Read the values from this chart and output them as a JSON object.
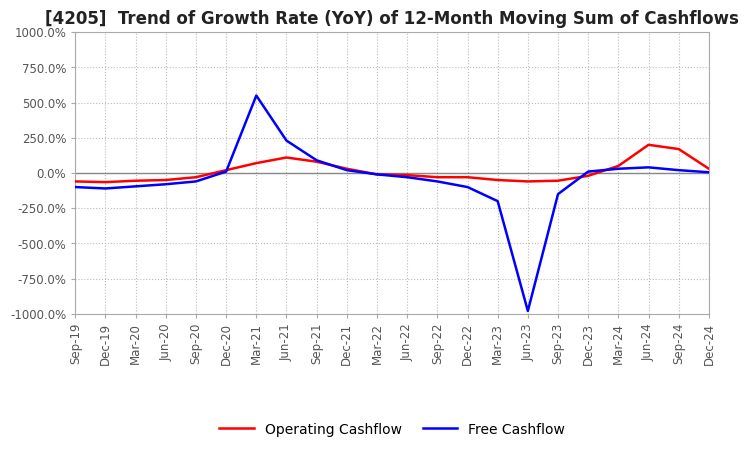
{
  "title": "[4205]  Trend of Growth Rate (YoY) of 12-Month Moving Sum of Cashflows",
  "ylim": [
    -1000,
    1000
  ],
  "yticks": [
    -1000,
    -750,
    -500,
    -250,
    0,
    250,
    500,
    750,
    1000
  ],
  "ytick_labels": [
    "-1000.0%",
    "-750.0%",
    "-500.0%",
    "-250.0%",
    "0.0%",
    "250.0%",
    "500.0%",
    "750.0%",
    "1000.0%"
  ],
  "x_labels": [
    "Sep-19",
    "Dec-19",
    "Mar-20",
    "Jun-20",
    "Sep-20",
    "Dec-20",
    "Mar-21",
    "Jun-21",
    "Sep-21",
    "Dec-21",
    "Mar-22",
    "Jun-22",
    "Sep-22",
    "Dec-22",
    "Mar-23",
    "Jun-23",
    "Sep-23",
    "Dec-23",
    "Mar-24",
    "Jun-24",
    "Sep-24",
    "Dec-24"
  ],
  "operating_cashflow": [
    -60,
    -65,
    -55,
    -50,
    -30,
    20,
    70,
    110,
    80,
    30,
    -10,
    -15,
    -30,
    -30,
    -50,
    -60,
    -55,
    -20,
    50,
    200,
    170,
    30
  ],
  "free_cashflow": [
    -100,
    -110,
    -95,
    -80,
    -60,
    10,
    550,
    230,
    90,
    20,
    -10,
    -30,
    -60,
    -100,
    -200,
    -980,
    -150,
    10,
    30,
    40,
    20,
    5
  ],
  "op_color": "#ff0000",
  "fc_color": "#0000ff",
  "background_color": "#ffffff",
  "grid_color": "#bbbbbb",
  "title_fontsize": 12,
  "tick_fontsize": 8.5,
  "legend_fontsize": 10
}
